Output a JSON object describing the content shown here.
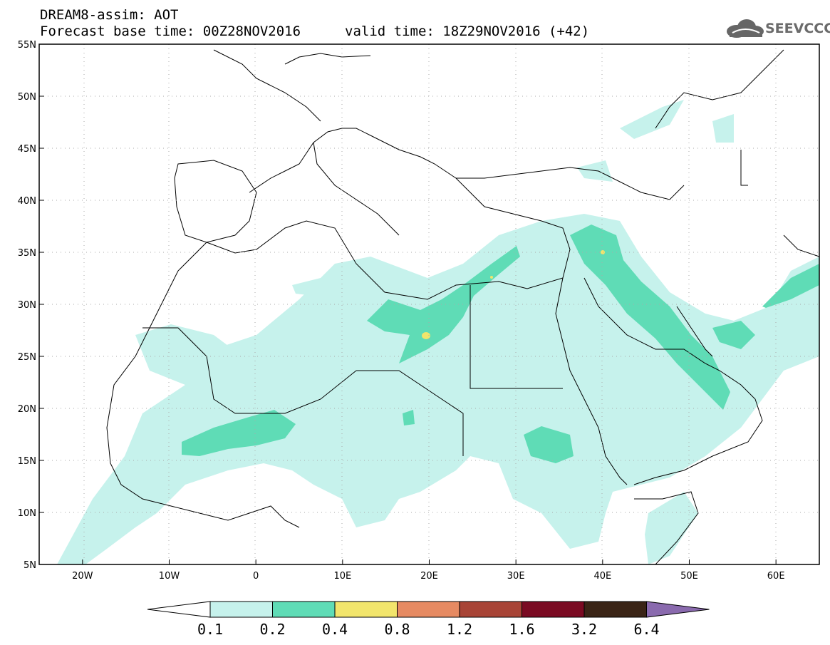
{
  "header": {
    "title": "DREAM8-assim: AOT",
    "base_time": "Forecast base time: 00Z28NOV2016",
    "valid_time": "valid time: 18Z29NOV2016 (+42)"
  },
  "logo": {
    "text": "SEEVCCC",
    "icon": "cloud-icon"
  },
  "map": {
    "lat_labels": [
      "55N",
      "50N",
      "45N",
      "40N",
      "35N",
      "30N",
      "25N",
      "20N",
      "15N",
      "10N",
      "5N"
    ],
    "lon_labels": [
      "20W",
      "10W",
      "0",
      "10E",
      "20E",
      "30E",
      "40E",
      "50E",
      "60E"
    ],
    "lat_values": [
      55,
      50,
      45,
      40,
      35,
      30,
      25,
      20,
      15,
      10,
      5
    ],
    "lon_values": [
      -20,
      -10,
      0,
      10,
      20,
      30,
      40,
      50,
      60
    ],
    "extent": {
      "lon_min": -25,
      "lon_max": 65,
      "lat_min": 5,
      "lat_max": 55
    }
  },
  "colorbar": {
    "labels": [
      "0.1",
      "0.2",
      "0.4",
      "0.8",
      "1.2",
      "1.6",
      "3.2",
      "6.4"
    ],
    "colors": [
      "#ffffff",
      "#c6f2ec",
      "#5fdcb6",
      "#f2e56c",
      "#e68a62",
      "#a84436",
      "#7a0a22",
      "#3a2416",
      "#8a6aae"
    ]
  }
}
